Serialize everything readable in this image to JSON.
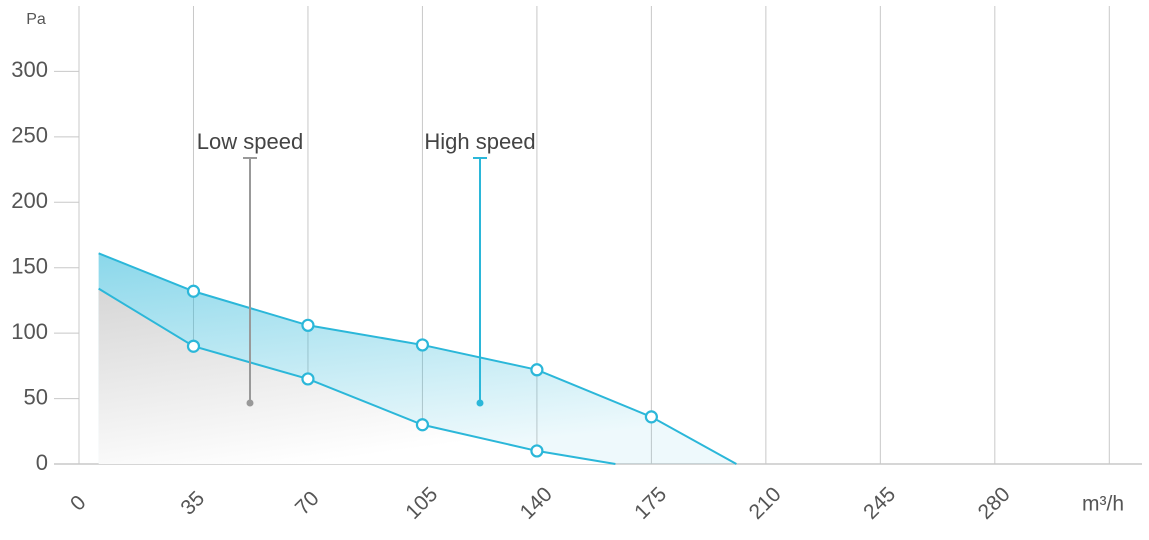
{
  "chart_data": {
    "type": "area-band",
    "y_label": "Pa",
    "x_label": "m³/h",
    "xlim": [
      0,
      325
    ],
    "ylim": [
      0,
      350
    ],
    "xticks": [
      0,
      35,
      70,
      105,
      140,
      175,
      210,
      245,
      280,
      {
        "value": 315,
        "label": null
      }
    ],
    "yticks": [
      0,
      50,
      100,
      150,
      200,
      250,
      300
    ],
    "grid": true,
    "series": [
      {
        "name": "High speed",
        "color": "#2bb7d9",
        "x": [
          6,
          35,
          70,
          105,
          140,
          175,
          201
        ],
        "values": [
          161,
          132,
          106,
          91,
          72,
          36,
          0
        ],
        "markers": [
          false,
          true,
          true,
          true,
          true,
          true,
          false
        ]
      },
      {
        "name": "Low speed",
        "color": "#2bb7d9",
        "x": [
          6,
          35,
          70,
          105,
          140,
          164
        ],
        "values": [
          134,
          90,
          65,
          30,
          10,
          0
        ],
        "markers": [
          false,
          true,
          true,
          true,
          true,
          false
        ]
      }
    ]
  }
}
